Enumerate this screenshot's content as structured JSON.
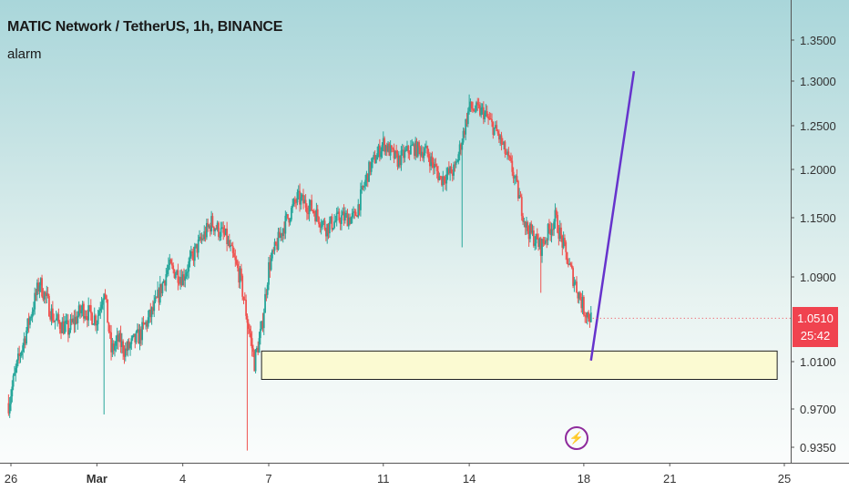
{
  "header": {
    "title": "MATIC Network / TetherUS, 1h, BINANCE",
    "indicator": "alarm"
  },
  "price_tag": {
    "price": "1.0510",
    "countdown": "25:42",
    "color": "#f0434f"
  },
  "event_marker": {
    "icon": "lightning-bolt-icon",
    "color": "#8e2a9c"
  },
  "colors": {
    "up": "#26a69a",
    "down": "#ef5350",
    "trendline": "#6633cc",
    "zone_fill": "#fbfad2"
  },
  "chart_data": {
    "type": "candlestick",
    "title": "MATIC Network / TetherUS, 1h, BINANCE",
    "y_ticks": [
      "1.3500",
      "1.3000",
      "1.2500",
      "1.2000",
      "1.1500",
      "1.0900",
      "1.0100",
      "0.9700",
      "0.9350"
    ],
    "x_ticks": [
      "26",
      "Mar",
      "4",
      "7",
      "11",
      "14",
      "18",
      "21",
      "25"
    ],
    "ylim": [
      0.925,
      1.375
    ],
    "grid": false,
    "price_path": [
      [
        "Feb 25 22:00",
        0.975
      ],
      [
        "Feb 26 06:00",
        1.01
      ],
      [
        "Feb 27 00:00",
        1.085
      ],
      [
        "Feb 27 12:00",
        1.05
      ],
      [
        "Feb 28 00:00",
        1.04
      ],
      [
        "Feb 28 12:00",
        1.06
      ],
      [
        "Mar 1 00:00",
        1.05
      ],
      [
        "Mar 1 06:00",
        1.08
      ],
      [
        "Mar 1 12:00",
        1.02
      ],
      [
        "Mar 1 18:00",
        1.03
      ],
      [
        "Mar 2 00:00",
        1.02
      ],
      [
        "Mar 2 12:00",
        1.035
      ],
      [
        "Mar 3 00:00",
        1.06
      ],
      [
        "Mar 3 12:00",
        1.1
      ],
      [
        "Mar 4 00:00",
        1.09
      ],
      [
        "Mar 4 12:00",
        1.12
      ],
      [
        "Mar 5 00:00",
        1.145
      ],
      [
        "Mar 5 12:00",
        1.13
      ],
      [
        "Mar 6 00:00",
        1.09
      ],
      [
        "Mar 6 06:00",
        1.05
      ],
      [
        "Mar 6 12:00",
        1.01
      ],
      [
        "Mar 6 18:00",
        1.04
      ],
      [
        "Mar 7 00:00",
        1.1
      ],
      [
        "Mar 7 12:00",
        1.14
      ],
      [
        "Mar 8 00:00",
        1.17
      ],
      [
        "Mar 8 12:00",
        1.16
      ],
      [
        "Mar 9 00:00",
        1.14
      ],
      [
        "Mar 9 12:00",
        1.15
      ],
      [
        "Mar 10 00:00",
        1.15
      ],
      [
        "Mar 10 12:00",
        1.2
      ],
      [
        "Mar 11 00:00",
        1.23
      ],
      [
        "Mar 11 12:00",
        1.21
      ],
      [
        "Mar 12 00:00",
        1.225
      ],
      [
        "Mar 12 12:00",
        1.22
      ],
      [
        "Mar 13 00:00",
        1.19
      ],
      [
        "Mar 13 12:00",
        1.2
      ],
      [
        "Mar 14 00:00",
        1.27
      ],
      [
        "Mar 14 12:00",
        1.265
      ],
      [
        "Mar 15 00:00",
        1.24
      ],
      [
        "Mar 15 12:00",
        1.2
      ],
      [
        "Mar 16 00:00",
        1.14
      ],
      [
        "Mar 16 12:00",
        1.12
      ],
      [
        "Mar 17 00:00",
        1.15
      ],
      [
        "Mar 17 12:00",
        1.1
      ],
      [
        "Mar 18 00:00",
        1.06
      ],
      [
        "Mar 18 06:00",
        1.051
      ]
    ],
    "extremes": {
      "high": {
        "x": "Mar 14 00:00",
        "y": 1.285
      },
      "low": {
        "x": "Mar 6 06:00",
        "y": 0.932
      }
    },
    "drawings": {
      "support_zone": {
        "x_start": "Mar 6 18:00",
        "x_end": "Mar 24 18:00",
        "y_top": 1.02,
        "y_bottom": 0.995
      },
      "trendline": {
        "x1": "Mar 18 06:00",
        "y1": 1.011,
        "x2": "Mar 19 18:00",
        "y2": 1.312
      }
    }
  }
}
